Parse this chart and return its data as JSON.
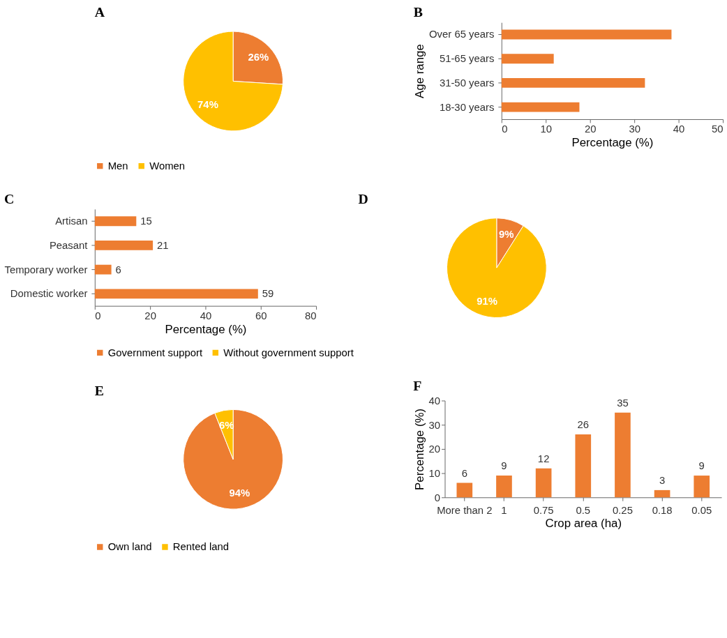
{
  "chart_data": [
    {
      "type": "pie",
      "title": "A",
      "categories": [
        "Men",
        "Women"
      ],
      "values": [
        26,
        74
      ],
      "colors": [
        "#ed7d31",
        "#ffc000"
      ],
      "value_labels": [
        "26%",
        "74%"
      ],
      "legend": "bottom"
    },
    {
      "type": "bar",
      "title": "B",
      "orientation": "horizontal",
      "categories": [
        "Over 65 years",
        "51-65 years",
        "31-50 years",
        "18-30 years"
      ],
      "values": [
        38.4,
        11.8,
        32.4,
        17.6
      ],
      "color": "#ed7d31",
      "xlim": [
        0,
        50
      ],
      "xticks": [
        0,
        10,
        20,
        30,
        40,
        50
      ],
      "xlabel": "Percentage (%)",
      "ylabel": "Age range"
    },
    {
      "type": "bar",
      "title": "C",
      "orientation": "horizontal",
      "categories": [
        "Artisan",
        "Peasant",
        "Temporary worker",
        "Domestic worker"
      ],
      "values": [
        15,
        21,
        6,
        59
      ],
      "color": "#ed7d31",
      "xlim": [
        0,
        80
      ],
      "xticks": [
        0,
        20,
        40,
        60,
        80
      ],
      "xlabel": "Percentage (%)",
      "data_labels": true
    },
    {
      "type": "pie",
      "title": "D",
      "categories": [
        "Government support",
        "Without government support"
      ],
      "values": [
        9,
        91
      ],
      "colors": [
        "#ed7d31",
        "#ffc000"
      ],
      "value_labels": [
        "9%",
        "91%"
      ],
      "legend": "bottom"
    },
    {
      "type": "pie",
      "title": "E",
      "categories": [
        "Own land",
        "Rented land"
      ],
      "values": [
        94,
        6
      ],
      "colors": [
        "#ed7d31",
        "#ffc000"
      ],
      "value_labels": [
        "94%",
        "6%"
      ],
      "legend": "bottom"
    },
    {
      "type": "bar",
      "title": "F",
      "categories": [
        "More than 2",
        "1",
        "0.75",
        "0.5",
        "0.25",
        "0.18",
        "0.05"
      ],
      "values": [
        6,
        9,
        12,
        26,
        35,
        3,
        9
      ],
      "color": "#ed7d31",
      "ylim": [
        0,
        40
      ],
      "yticks": [
        0,
        10,
        20,
        30,
        40
      ],
      "xlabel": "Crop area (ha)",
      "ylabel": "Percentage (%)",
      "data_labels": true
    }
  ]
}
